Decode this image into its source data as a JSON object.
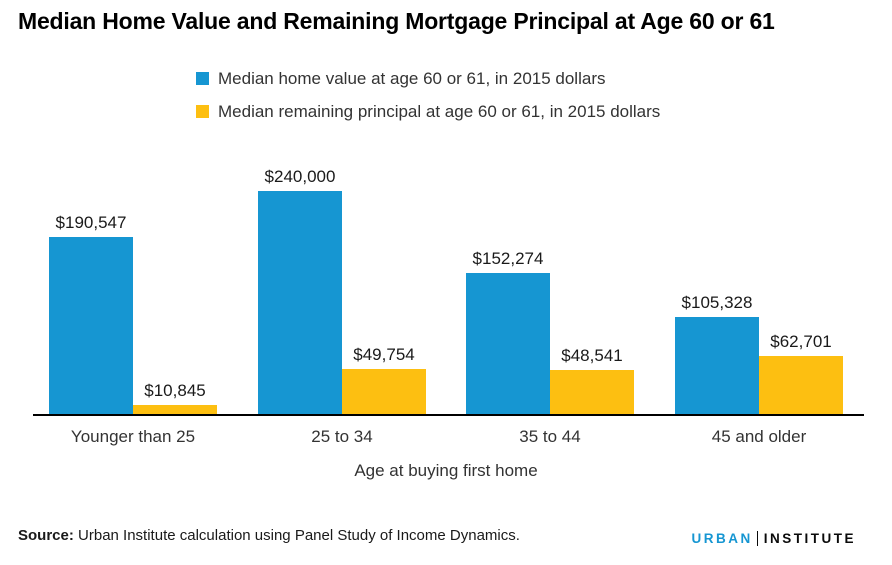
{
  "title": "Median Home Value and Remaining Mortgage Principal at Age 60 or 61",
  "legend": [
    {
      "label": "Median home value at age 60 or 61, in 2015 dollars",
      "color": "#1696d2"
    },
    {
      "label": "Median remaining principal at age 60 or 61, in 2015 dollars",
      "color": "#fdbf11"
    }
  ],
  "chart_data": {
    "type": "bar",
    "categories": [
      "Younger than 25",
      "25 to 34",
      "35 to 44",
      "45 and older"
    ],
    "series": [
      {
        "name": "Median home value at age 60 or 61, in 2015 dollars",
        "color": "#1696d2",
        "values": [
          190547,
          240000,
          152274,
          105328
        ],
        "labels": [
          "$190,547",
          "$240,000",
          "$152,274",
          "$105,328"
        ]
      },
      {
        "name": "Median remaining principal at age 60 or 61, in 2015 dollars",
        "color": "#fdbf11",
        "values": [
          10845,
          49754,
          48541,
          62701
        ],
        "labels": [
          "$10,845",
          "$49,754",
          "$48,541",
          "$62,701"
        ]
      }
    ],
    "title": "Median Home Value and Remaining Mortgage Principal at Age 60 or 61",
    "xlabel": "Age at buying first home",
    "ylabel": "",
    "ylim": [
      0,
      240000
    ],
    "grid": false,
    "legend_position": "top"
  },
  "source": {
    "prefix": "Source:",
    "text": " Urban Institute calculation using Panel Study of Income Dynamics."
  },
  "logo": {
    "urban": "URBAN",
    "institute": "INSTITUTE",
    "urban_color": "#1696d2",
    "institute_color": "#0a0a0a"
  }
}
